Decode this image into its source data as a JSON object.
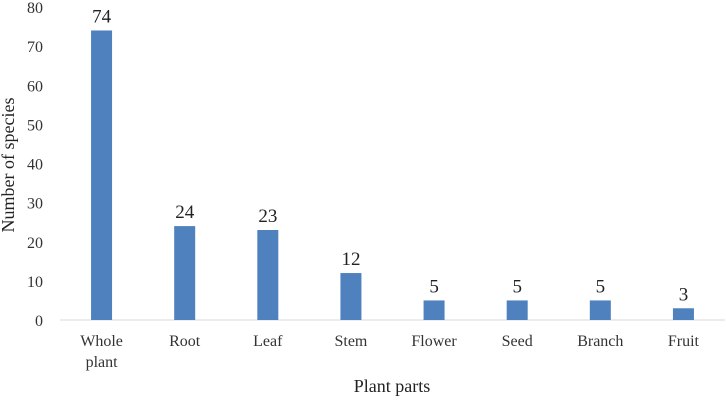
{
  "chart_data": {
    "type": "bar",
    "categories": [
      [
        "Whole",
        "plant"
      ],
      [
        "Root"
      ],
      [
        "Leaf"
      ],
      [
        "Stem"
      ],
      [
        "Flower"
      ],
      [
        "Seed"
      ],
      [
        "Branch"
      ],
      [
        "Fruit"
      ]
    ],
    "values": [
      74,
      24,
      23,
      12,
      5,
      5,
      5,
      3
    ],
    "data_labels": [
      "74",
      "24",
      "23",
      "12",
      "5",
      "5",
      "5",
      "3"
    ],
    "title": "",
    "xlabel": "Plant parts",
    "ylabel": "Number of species",
    "ylim": [
      0,
      80
    ],
    "yticks": [
      "0",
      "10",
      "20",
      "30",
      "40",
      "50",
      "60",
      "70",
      "80"
    ],
    "grid": false,
    "legend": "none",
    "colors": {
      "bar": "#4e81bd",
      "axis": "#d9d9d9"
    }
  }
}
